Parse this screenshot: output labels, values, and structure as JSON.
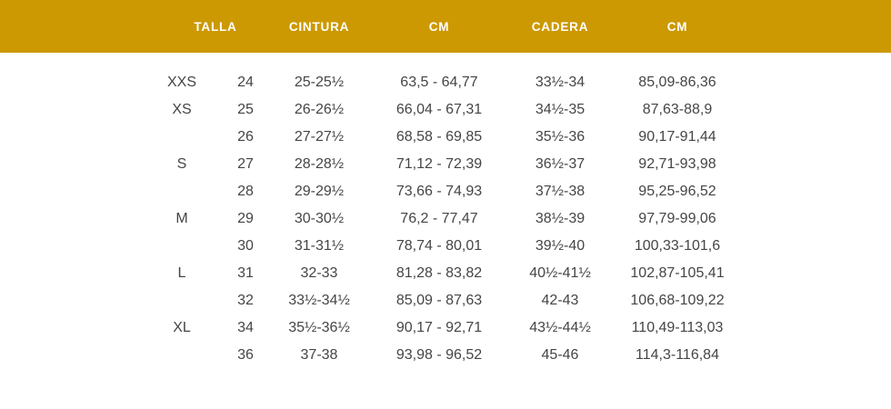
{
  "header": {
    "bg_color": "#CC9902",
    "text_color": "#FFFFFF",
    "columns": [
      {
        "label": "TALLA"
      },
      {
        "label": "CINTURA"
      },
      {
        "label": "CM"
      },
      {
        "label": "CADERA"
      },
      {
        "label": "CM"
      }
    ]
  },
  "table": {
    "text_color": "#454545",
    "rows": [
      {
        "size": "XXS",
        "num": "24",
        "waist_in": "25-25½",
        "waist_cm": "63,5 - 64,77",
        "hip_in": "33½-34",
        "hip_cm": "85,09-86,36"
      },
      {
        "size": "XS",
        "num": "25",
        "waist_in": "26-26½",
        "waist_cm": "66,04 - 67,31",
        "hip_in": "34½-35",
        "hip_cm": "87,63-88,9"
      },
      {
        "size": "",
        "num": "26",
        "waist_in": "27-27½",
        "waist_cm": "68,58 - 69,85",
        "hip_in": "35½-36",
        "hip_cm": "90,17-91,44"
      },
      {
        "size": "S",
        "num": "27",
        "waist_in": "28-28½",
        "waist_cm": "71,12 - 72,39",
        "hip_in": "36½-37",
        "hip_cm": "92,71-93,98"
      },
      {
        "size": "",
        "num": "28",
        "waist_in": "29-29½",
        "waist_cm": "73,66 - 74,93",
        "hip_in": "37½-38",
        "hip_cm": "95,25-96,52"
      },
      {
        "size": "M",
        "num": "29",
        "waist_in": "30-30½",
        "waist_cm": "76,2 - 77,47",
        "hip_in": "38½-39",
        "hip_cm": "97,79-99,06"
      },
      {
        "size": "",
        "num": "30",
        "waist_in": "31-31½",
        "waist_cm": "78,74 - 80,01",
        "hip_in": "39½-40",
        "hip_cm": "100,33-101,6"
      },
      {
        "size": "L",
        "num": "31",
        "waist_in": "32-33",
        "waist_cm": "81,28 - 83,82",
        "hip_in": "40½-41½",
        "hip_cm": "102,87-105,41"
      },
      {
        "size": "",
        "num": "32",
        "waist_in": "33½-34½",
        "waist_cm": "85,09 - 87,63",
        "hip_in": "42-43",
        "hip_cm": "106,68-109,22"
      },
      {
        "size": "XL",
        "num": "34",
        "waist_in": "35½-36½",
        "waist_cm": "90,17 - 92,71",
        "hip_in": "43½-44½",
        "hip_cm": "110,49-113,03"
      },
      {
        "size": "",
        "num": "36",
        "waist_in": "37-38",
        "waist_cm": "93,98 - 96,52",
        "hip_in": "45-46",
        "hip_cm": "114,3-116,84"
      }
    ]
  }
}
